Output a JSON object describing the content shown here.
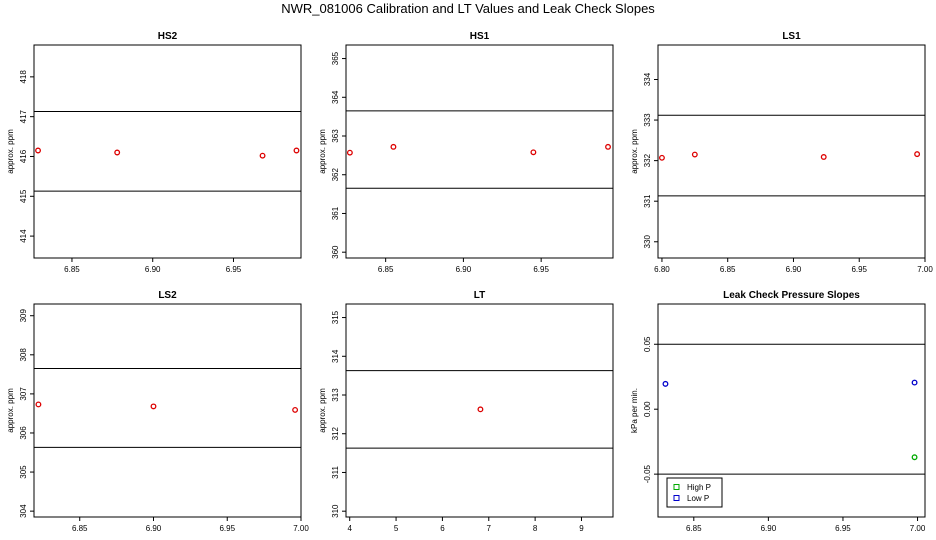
{
  "title": "NWR_081006  Calibration and LT Values and Leak Check Slopes",
  "colors": {
    "calibration_points": "#dd0000",
    "high_p": "#00aa00",
    "low_p": "#0000cc",
    "lines": "#000000"
  },
  "chart_data": [
    {
      "type": "scatter",
      "title": "HS2",
      "xlabel": "",
      "ylabel": "approx. ppm",
      "xlim": [
        6.8265,
        6.9918
      ],
      "ylim": [
        413.45,
        418.8
      ],
      "xticks": [
        "6.85",
        "6.90",
        "6.95"
      ],
      "yticks": [
        "414",
        "415",
        "416",
        "417",
        "418"
      ],
      "reference_lines": [
        415.13,
        417.13
      ],
      "series": [
        {
          "x": [
            6.829,
            6.878,
            6.968,
            6.989
          ],
          "y": [
            416.15,
            416.1,
            416.02,
            416.15
          ]
        }
      ]
    },
    {
      "type": "scatter",
      "title": "HS1",
      "xlabel": "",
      "ylabel": "approx. ppm",
      "xlim": [
        6.8245,
        6.9962
      ],
      "ylim": [
        359.85,
        365.35
      ],
      "xticks": [
        "6.85",
        "6.90",
        "6.95"
      ],
      "yticks": [
        "360",
        "361",
        "362",
        "363",
        "364",
        "365"
      ],
      "reference_lines": [
        361.65,
        363.65
      ],
      "series": [
        {
          "x": [
            6.827,
            6.855,
            6.945,
            6.993
          ],
          "y": [
            362.57,
            362.72,
            362.58,
            362.72
          ]
        }
      ]
    },
    {
      "type": "scatter",
      "title": "LS1",
      "xlabel": "",
      "ylabel": "approx. ppm",
      "xlim": [
        6.797,
        7.0
      ],
      "ylim": [
        329.6,
        334.85
      ],
      "xticks": [
        "6.80",
        "6.85",
        "6.90",
        "6.95",
        "7.00"
      ],
      "yticks": [
        "330",
        "331",
        "332",
        "333",
        "334"
      ],
      "reference_lines": [
        331.13,
        333.12
      ],
      "series": [
        {
          "x": [
            6.8,
            6.825,
            6.923,
            6.994
          ],
          "y": [
            332.07,
            332.15,
            332.09,
            332.16
          ]
        }
      ]
    },
    {
      "type": "scatter",
      "title": "LS2",
      "xlabel": "",
      "ylabel": "approx. ppm",
      "xlim": [
        6.819,
        7.0
      ],
      "ylim": [
        303.85,
        309.3
      ],
      "xticks": [
        "6.85",
        "6.90",
        "6.95",
        "7.00"
      ],
      "yticks": [
        "304",
        "305",
        "306",
        "307",
        "308",
        "309"
      ],
      "reference_lines": [
        305.63,
        307.65
      ],
      "series": [
        {
          "x": [
            6.822,
            6.9,
            6.996
          ],
          "y": [
            306.73,
            306.68,
            306.59
          ]
        }
      ]
    },
    {
      "type": "scatter",
      "title": "LT",
      "xlabel": "",
      "ylabel": "approx. ppm",
      "xlim": [
        3.92,
        9.68
      ],
      "ylim": [
        309.85,
        315.35
      ],
      "xticks": [
        "4",
        "5",
        "6",
        "7",
        "8",
        "9"
      ],
      "yticks": [
        "310",
        "311",
        "312",
        "313",
        "314",
        "315"
      ],
      "reference_lines": [
        311.63,
        313.63
      ],
      "series": [
        {
          "x": [
            6.82
          ],
          "y": [
            312.63
          ]
        }
      ]
    },
    {
      "type": "scatter",
      "title": "Leak Check Pressure Slopes",
      "xlabel": "",
      "ylabel": "kPa per min.",
      "xlim": [
        6.826,
        7.005
      ],
      "ylim": [
        -0.083,
        0.081
      ],
      "xticks": [
        "6.85",
        "6.90",
        "6.95",
        "7.00"
      ],
      "yticks": [
        "-0.05",
        "0.00",
        "0.05"
      ],
      "reference_lines": [
        -0.05,
        0.05
      ],
      "legend": {
        "position": "bottom-left",
        "entries": [
          "High P",
          "Low P"
        ]
      },
      "series": [
        {
          "name": "High P",
          "x": [
            6.998
          ],
          "y": [
            -0.037
          ]
        },
        {
          "name": "Low P",
          "x": [
            6.831,
            6.998
          ],
          "y": [
            0.0195,
            0.0205
          ]
        }
      ]
    }
  ]
}
